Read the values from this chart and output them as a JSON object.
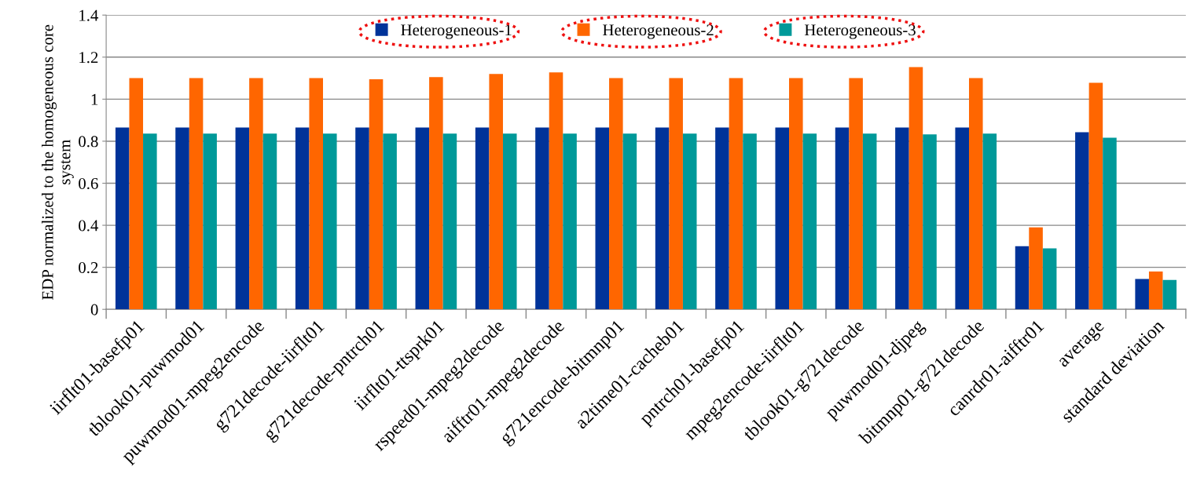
{
  "chart_data": {
    "type": "bar",
    "ylabel": "EDP normalized to the homogeneous core system",
    "categories": [
      "iirflt01-basefp01",
      "tblook01-puwmod01",
      "puwmod01-mpeg2encode",
      "g721decode-iirflt01",
      "g721decode-pntrch01",
      "iirflt01-ttsprk01",
      "rspeed01-mpeg2decode",
      "aifftr01-mpeg2decode",
      "g721encode-bitmnp01",
      "a2time01-cacheb01",
      "pntrch01-basefp01",
      "mpeg2encode-iirflt01",
      "tblook01-g721decode",
      "puwmod01-djpeg",
      "bitmnp01-g721decode",
      "canrdr01-aifftr01",
      "average",
      "standard deviation"
    ],
    "series": [
      {
        "name": "Heterogeneous-1",
        "color": "#003399",
        "values": [
          0.865,
          0.865,
          0.865,
          0.865,
          0.865,
          0.865,
          0.865,
          0.865,
          0.865,
          0.865,
          0.865,
          0.865,
          0.865,
          0.865,
          0.865,
          0.3,
          0.843,
          0.145
        ]
      },
      {
        "name": "Heterogeneous-2",
        "color": "#ff6600",
        "values": [
          1.1,
          1.1,
          1.1,
          1.1,
          1.095,
          1.105,
          1.12,
          1.127,
          1.1,
          1.1,
          1.1,
          1.1,
          1.1,
          1.153,
          1.1,
          0.39,
          1.078,
          0.18
        ]
      },
      {
        "name": "Heterogeneous-3",
        "color": "#009999",
        "values": [
          0.836,
          0.836,
          0.836,
          0.836,
          0.836,
          0.836,
          0.836,
          0.836,
          0.836,
          0.836,
          0.836,
          0.836,
          0.836,
          0.832,
          0.836,
          0.29,
          0.817,
          0.14
        ]
      }
    ],
    "ylim": [
      0,
      1.4
    ],
    "yticks": [
      0,
      0.2,
      0.4,
      0.6,
      0.8,
      1,
      1.2,
      1.4
    ],
    "grid": "y",
    "legend": "top"
  }
}
